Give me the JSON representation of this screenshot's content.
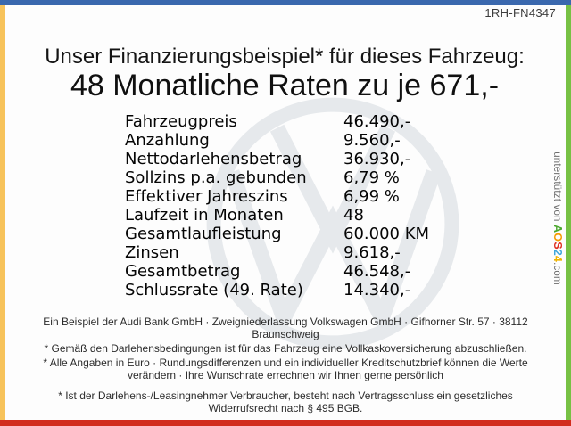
{
  "frame": {
    "top_bar_color": "#3a68ae",
    "left_bar_color": "#f7c35b",
    "right_bar_color": "#77c144",
    "bottom_bar_color": "#d22d1e"
  },
  "header": {
    "vehicle_code": "1RH-FN4347",
    "title": "Unser Finanzierungsbeispiel* für dieses Fahrzeug:",
    "subtitle": "48 Monatliche Raten zu je 671,-"
  },
  "financing_table": {
    "rows": [
      {
        "label": "Fahrzeugpreis",
        "value": "46.490,-"
      },
      {
        "label": "Anzahlung",
        "value": "9.560,-"
      },
      {
        "label": "Nettodarlehensbetrag",
        "value": "36.930,-"
      },
      {
        "label": "Sollzins p.a. gebunden",
        "value": "6,79 %"
      },
      {
        "label": "Effektiver Jahreszins",
        "value": "6,99 %"
      },
      {
        "label": "Laufzeit in Monaten",
        "value": "48"
      },
      {
        "label": "Gesamtlaufleistung",
        "value": "60.000 KM"
      },
      {
        "label": "Zinsen",
        "value": "9.618,-"
      },
      {
        "label": "Gesamtbetrag",
        "value": "46.548,-"
      },
      {
        "label": "Schlussrate (49. Rate)",
        "value": "14.340,-"
      }
    ]
  },
  "watermark": {
    "icon": "vw-logo",
    "color": "#e6e9ec"
  },
  "credit": {
    "prefix": "unterstützt von ",
    "brand": [
      {
        "char": "A",
        "color": "#4ba82e"
      },
      {
        "char": "O",
        "color": "#f59b00"
      },
      {
        "char": "S",
        "color": "#e03123"
      },
      {
        "char": "2",
        "color": "#3fa7dd"
      },
      {
        "char": "4",
        "color": "#f0b400"
      }
    ],
    "suffix": ".com",
    "text_color": "#6e6e6e"
  },
  "footer": {
    "lines": [
      "Ein Beispiel der Audi Bank GmbH · Zweigniederlassung Volkswagen GmbH · Gifhorner Str. 57 · 38112 Braunschweig",
      "* Gemäß den Darlehensbedingungen ist für das Fahrzeug eine Vollkaskoversicherung abzuschließen.",
      "* Alle Angaben in Euro · Rundungsdifferenzen und ein individueller Kreditschutzbrief können die Werte verändern · Ihre Wunschrate errechnen wir Ihnen gerne persönlich",
      "* Ist der Darlehens-/Leasingnehmer Verbraucher, besteht nach Vertragsschluss ein gesetzliches Widerrufsrecht nach § 495 BGB."
    ]
  }
}
